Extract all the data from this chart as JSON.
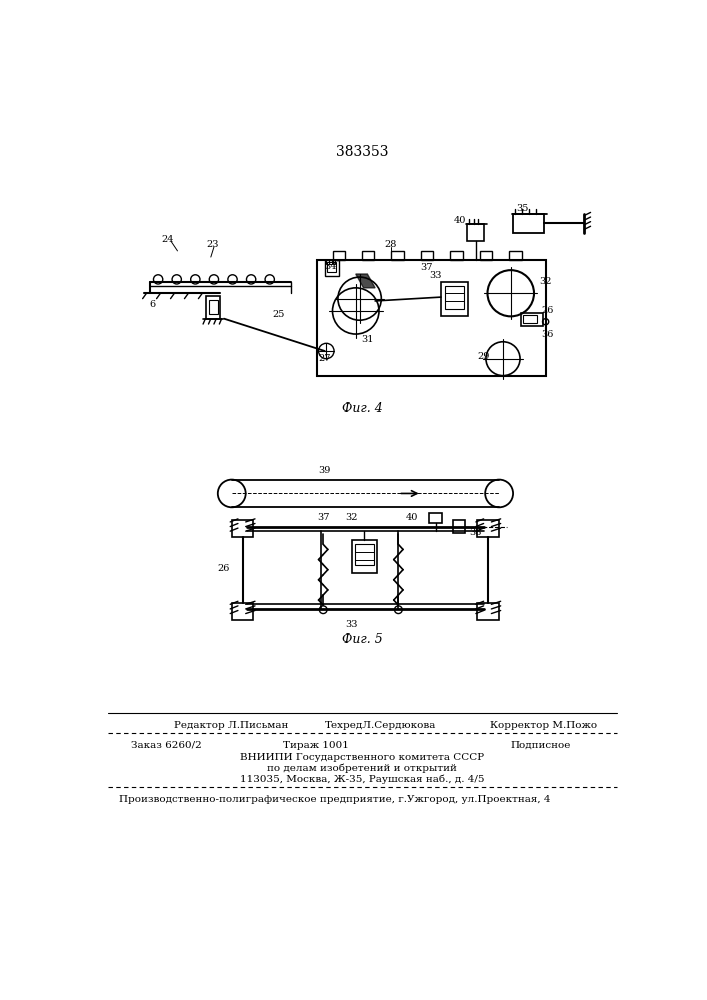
{
  "patent_number": "383353",
  "fig4_label": "Фиг. 4",
  "fig5_label": "Фиг. 5",
  "editor_line": "Редактор Л.Письман",
  "techred_line": "ТехредЛ.Сердюкова",
  "corrector_line": "Корректор М.Пожо",
  "order_line": "Заказ 6260/2",
  "tirazh_line": "Тираж 1001",
  "podpisnoe_line": "Подписное",
  "vnipi_line1": "ВНИИПИ Государственного комитета СССР",
  "vnipi_line2": "по делам изобретений и открытий",
  "vnipi_line3": "113035, Москва, Ж-35, Раушская наб., д. 4/5",
  "production_line": "Производственно-полиграфическое предприятие, г.Ужгород, ул.Проектная, 4",
  "bg_color": "#ffffff",
  "line_color": "#000000"
}
